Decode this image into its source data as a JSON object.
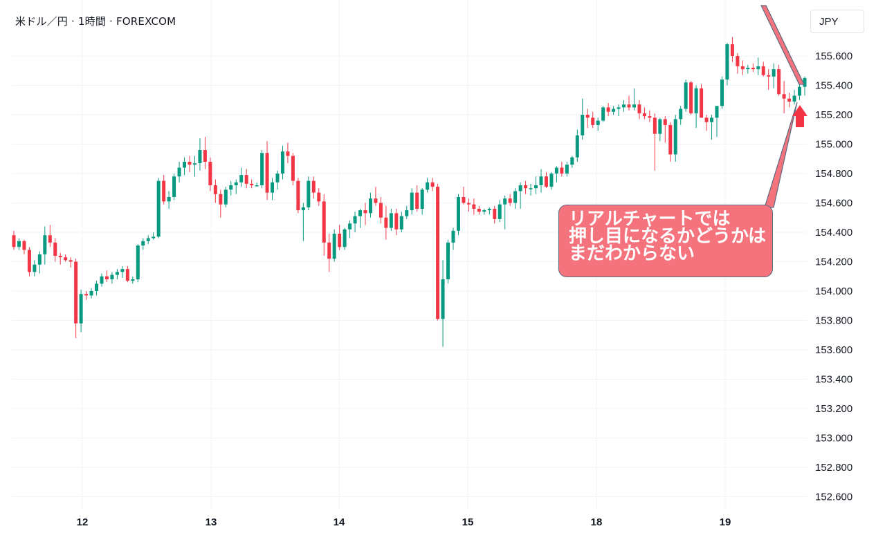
{
  "header": {
    "title": "米ドル／円 · 1時間 · FOREXCOM",
    "currency": "JPY"
  },
  "annotation": {
    "lines": [
      "リアルチャートでは",
      "押し目になるかどうかは",
      "まだわからない"
    ],
    "fill_color": "#f4737d",
    "border_color": "#5b6a82",
    "arrow_color": "#f23645"
  },
  "colors": {
    "up": "#089981",
    "down": "#f23645",
    "grid": "#f0f3fa",
    "axis_text": "#131722"
  },
  "chart_data": {
    "type": "candlestick",
    "title": "米ドル／円 · 1時間 · FOREXCOM",
    "xlabel": "",
    "ylabel": "",
    "ylim": [
      152.55,
      155.85
    ],
    "y_ticks": [
      "152.600",
      "152.800",
      "153.000",
      "153.200",
      "153.400",
      "153.600",
      "153.800",
      "154.000",
      "154.200",
      "154.400",
      "154.600",
      "154.800",
      "155.000",
      "155.200",
      "155.400",
      "155.600"
    ],
    "x_ticks": [
      "12",
      "13",
      "14",
      "15",
      "18",
      "19"
    ],
    "candles": [
      [
        154.38,
        154.41,
        154.28,
        154.3
      ],
      [
        154.3,
        154.36,
        154.28,
        154.34
      ],
      [
        154.34,
        154.35,
        154.25,
        154.28
      ],
      [
        154.28,
        154.3,
        154.1,
        154.13
      ],
      [
        154.13,
        154.21,
        154.1,
        154.18
      ],
      [
        154.18,
        154.27,
        154.12,
        154.25
      ],
      [
        154.25,
        154.44,
        154.18,
        154.38
      ],
      [
        154.38,
        154.45,
        154.3,
        154.33
      ],
      [
        154.33,
        154.36,
        154.2,
        154.24
      ],
      [
        154.24,
        154.26,
        154.18,
        154.23
      ],
      [
        154.23,
        154.25,
        154.2,
        154.21
      ],
      [
        154.21,
        154.23,
        154.16,
        154.2
      ],
      [
        154.2,
        154.22,
        153.68,
        153.78
      ],
      [
        153.78,
        154.01,
        153.72,
        153.98
      ],
      [
        153.98,
        154.0,
        153.94,
        153.97
      ],
      [
        153.97,
        154.02,
        153.95,
        154.0
      ],
      [
        154.0,
        154.07,
        153.97,
        154.05
      ],
      [
        154.05,
        154.12,
        154.03,
        154.1
      ],
      [
        154.1,
        154.14,
        154.06,
        154.08
      ],
      [
        154.08,
        154.13,
        154.05,
        154.11
      ],
      [
        154.11,
        154.15,
        154.08,
        154.13
      ],
      [
        154.13,
        154.17,
        154.09,
        154.15
      ],
      [
        154.15,
        154.17,
        154.06,
        154.07
      ],
      [
        154.07,
        154.1,
        154.05,
        154.08
      ],
      [
        154.08,
        154.32,
        154.06,
        154.31
      ],
      [
        154.31,
        154.36,
        154.28,
        154.34
      ],
      [
        154.34,
        154.38,
        154.32,
        154.36
      ],
      [
        154.36,
        154.4,
        154.35,
        154.37
      ],
      [
        154.37,
        154.77,
        154.36,
        154.75
      ],
      [
        154.75,
        154.79,
        154.59,
        154.61
      ],
      [
        154.61,
        154.68,
        154.56,
        154.64
      ],
      [
        154.64,
        154.8,
        154.62,
        154.78
      ],
      [
        154.78,
        154.88,
        154.74,
        154.84
      ],
      [
        154.84,
        154.91,
        154.79,
        154.88
      ],
      [
        154.88,
        154.92,
        154.81,
        154.86
      ],
      [
        154.86,
        154.92,
        154.78,
        154.87
      ],
      [
        154.87,
        155.04,
        154.82,
        154.96
      ],
      [
        154.96,
        155.05,
        154.83,
        154.88
      ],
      [
        154.88,
        154.91,
        154.68,
        154.72
      ],
      [
        154.72,
        154.76,
        154.6,
        154.66
      ],
      [
        154.66,
        154.69,
        154.5,
        154.59
      ],
      [
        154.59,
        154.71,
        154.57,
        154.69
      ],
      [
        154.69,
        154.75,
        154.65,
        154.72
      ],
      [
        154.72,
        154.76,
        154.66,
        154.74
      ],
      [
        154.74,
        154.84,
        154.71,
        154.79
      ],
      [
        154.79,
        154.83,
        154.7,
        154.73
      ],
      [
        154.73,
        154.76,
        154.7,
        154.72
      ],
      [
        154.72,
        154.74,
        154.71,
        154.72
      ],
      [
        154.72,
        154.96,
        154.7,
        154.94
      ],
      [
        154.94,
        155.02,
        154.62,
        154.67
      ],
      [
        154.67,
        154.77,
        154.62,
        154.74
      ],
      [
        154.74,
        154.82,
        154.69,
        154.8
      ],
      [
        154.8,
        154.99,
        154.76,
        154.95
      ],
      [
        154.95,
        155.01,
        154.87,
        154.92
      ],
      [
        154.92,
        154.94,
        154.72,
        154.75
      ],
      [
        154.75,
        154.77,
        154.53,
        154.55
      ],
      [
        154.55,
        154.6,
        154.34,
        154.57
      ],
      [
        154.57,
        154.78,
        154.55,
        154.75
      ],
      [
        154.75,
        154.78,
        154.63,
        154.67
      ],
      [
        154.67,
        154.7,
        154.58,
        154.61
      ],
      [
        154.61,
        154.66,
        154.24,
        154.33
      ],
      [
        154.33,
        154.39,
        154.13,
        154.22
      ],
      [
        154.22,
        154.42,
        154.2,
        154.39
      ],
      [
        154.39,
        154.45,
        154.28,
        154.3
      ],
      [
        154.3,
        154.43,
        154.28,
        154.42
      ],
      [
        154.42,
        154.48,
        154.36,
        154.46
      ],
      [
        154.46,
        154.54,
        154.4,
        154.51
      ],
      [
        154.51,
        154.56,
        154.43,
        154.55
      ],
      [
        154.55,
        154.6,
        154.45,
        154.53
      ],
      [
        154.53,
        154.67,
        154.5,
        154.63
      ],
      [
        154.63,
        154.71,
        154.58,
        154.6
      ],
      [
        154.6,
        154.64,
        154.46,
        154.5
      ],
      [
        154.5,
        154.58,
        154.35,
        154.43
      ],
      [
        154.43,
        154.56,
        154.41,
        154.53
      ],
      [
        154.53,
        154.56,
        154.38,
        154.42
      ],
      [
        154.42,
        154.54,
        154.4,
        154.51
      ],
      [
        154.51,
        154.58,
        154.49,
        154.55
      ],
      [
        154.55,
        154.7,
        154.52,
        154.67
      ],
      [
        154.67,
        154.72,
        154.54,
        154.56
      ],
      [
        154.56,
        154.7,
        154.52,
        154.69
      ],
      [
        154.69,
        154.77,
        154.67,
        154.74
      ],
      [
        154.74,
        154.77,
        154.68,
        154.71
      ],
      [
        154.71,
        154.73,
        153.8,
        153.81
      ],
      [
        153.81,
        154.21,
        153.62,
        154.08
      ],
      [
        154.08,
        154.35,
        154.05,
        154.33
      ],
      [
        154.33,
        154.43,
        154.28,
        154.41
      ],
      [
        154.41,
        154.66,
        154.38,
        154.64
      ],
      [
        154.64,
        154.71,
        154.59,
        154.6
      ],
      [
        154.6,
        154.63,
        154.54,
        154.59
      ],
      [
        154.59,
        154.63,
        154.52,
        154.56
      ],
      [
        154.56,
        154.58,
        154.52,
        154.54
      ],
      [
        154.54,
        154.56,
        154.52,
        154.55
      ],
      [
        154.55,
        154.57,
        154.52,
        154.56
      ],
      [
        154.56,
        154.58,
        154.46,
        154.49
      ],
      [
        154.49,
        154.62,
        154.47,
        154.59
      ],
      [
        154.59,
        154.65,
        154.42,
        154.63
      ],
      [
        154.63,
        154.66,
        154.58,
        154.6
      ],
      [
        154.6,
        154.7,
        154.56,
        154.68
      ],
      [
        154.68,
        154.74,
        154.56,
        154.72
      ],
      [
        154.72,
        154.75,
        154.66,
        154.7
      ],
      [
        154.7,
        154.73,
        154.65,
        154.7
      ],
      [
        154.7,
        154.78,
        154.66,
        154.72
      ],
      [
        154.72,
        154.83,
        154.67,
        154.78
      ],
      [
        154.78,
        154.81,
        154.7,
        154.71
      ],
      [
        154.71,
        154.81,
        154.69,
        154.8
      ],
      [
        154.8,
        154.85,
        154.74,
        154.84
      ],
      [
        154.84,
        154.88,
        154.78,
        154.8
      ],
      [
        154.8,
        154.88,
        154.78,
        154.86
      ],
      [
        154.86,
        154.92,
        154.84,
        154.91
      ],
      [
        154.91,
        155.1,
        154.88,
        155.06
      ],
      [
        155.06,
        155.31,
        155.03,
        155.2
      ],
      [
        155.2,
        155.24,
        155.11,
        155.18
      ],
      [
        155.18,
        155.22,
        155.11,
        155.13
      ],
      [
        155.13,
        155.18,
        155.09,
        155.16
      ],
      [
        155.16,
        155.26,
        155.15,
        155.25
      ],
      [
        155.25,
        155.28,
        155.19,
        155.22
      ],
      [
        155.22,
        155.26,
        155.2,
        155.24
      ],
      [
        155.24,
        155.27,
        155.19,
        155.25
      ],
      [
        155.25,
        155.3,
        155.22,
        155.27
      ],
      [
        155.27,
        155.33,
        155.23,
        155.25
      ],
      [
        155.25,
        155.38,
        155.23,
        155.27
      ],
      [
        155.27,
        155.3,
        155.17,
        155.21
      ],
      [
        155.21,
        155.25,
        155.17,
        155.19
      ],
      [
        155.19,
        155.23,
        155.15,
        155.18
      ],
      [
        155.18,
        155.21,
        154.82,
        155.07
      ],
      [
        155.07,
        155.18,
        155.02,
        155.17
      ],
      [
        155.17,
        155.19,
        155.01,
        155.13
      ],
      [
        155.13,
        155.15,
        154.88,
        154.93
      ],
      [
        154.93,
        155.2,
        154.88,
        155.17
      ],
      [
        155.17,
        155.26,
        155.13,
        155.24
      ],
      [
        155.24,
        155.44,
        155.22,
        155.42
      ],
      [
        155.42,
        155.43,
        155.2,
        155.21
      ],
      [
        155.21,
        155.4,
        155.11,
        155.38
      ],
      [
        155.38,
        155.41,
        155.18,
        155.18
      ],
      [
        155.18,
        155.2,
        155.09,
        155.15
      ],
      [
        155.15,
        155.2,
        155.03,
        155.18
      ],
      [
        155.18,
        155.25,
        155.05,
        155.26
      ],
      [
        155.26,
        155.46,
        155.24,
        155.44
      ],
      [
        155.44,
        155.69,
        155.4,
        155.68
      ],
      [
        155.68,
        155.73,
        155.56,
        155.6
      ],
      [
        155.6,
        155.62,
        155.48,
        155.53
      ],
      [
        155.53,
        155.57,
        155.47,
        155.51
      ],
      [
        155.51,
        155.54,
        155.48,
        155.52
      ],
      [
        155.52,
        155.55,
        155.49,
        155.51
      ],
      [
        155.51,
        155.59,
        155.47,
        155.53
      ],
      [
        155.53,
        155.56,
        155.46,
        155.47
      ],
      [
        155.47,
        155.51,
        155.37,
        155.46
      ],
      [
        155.46,
        155.55,
        155.38,
        155.51
      ],
      [
        155.51,
        155.54,
        155.33,
        155.34
      ],
      [
        155.34,
        155.43,
        155.21,
        155.31
      ],
      [
        155.31,
        155.35,
        155.25,
        155.29
      ],
      [
        155.29,
        155.37,
        155.27,
        155.33
      ],
      [
        155.33,
        155.42,
        155.3,
        155.39
      ],
      [
        155.39,
        155.46,
        155.33,
        155.45
      ]
    ]
  }
}
